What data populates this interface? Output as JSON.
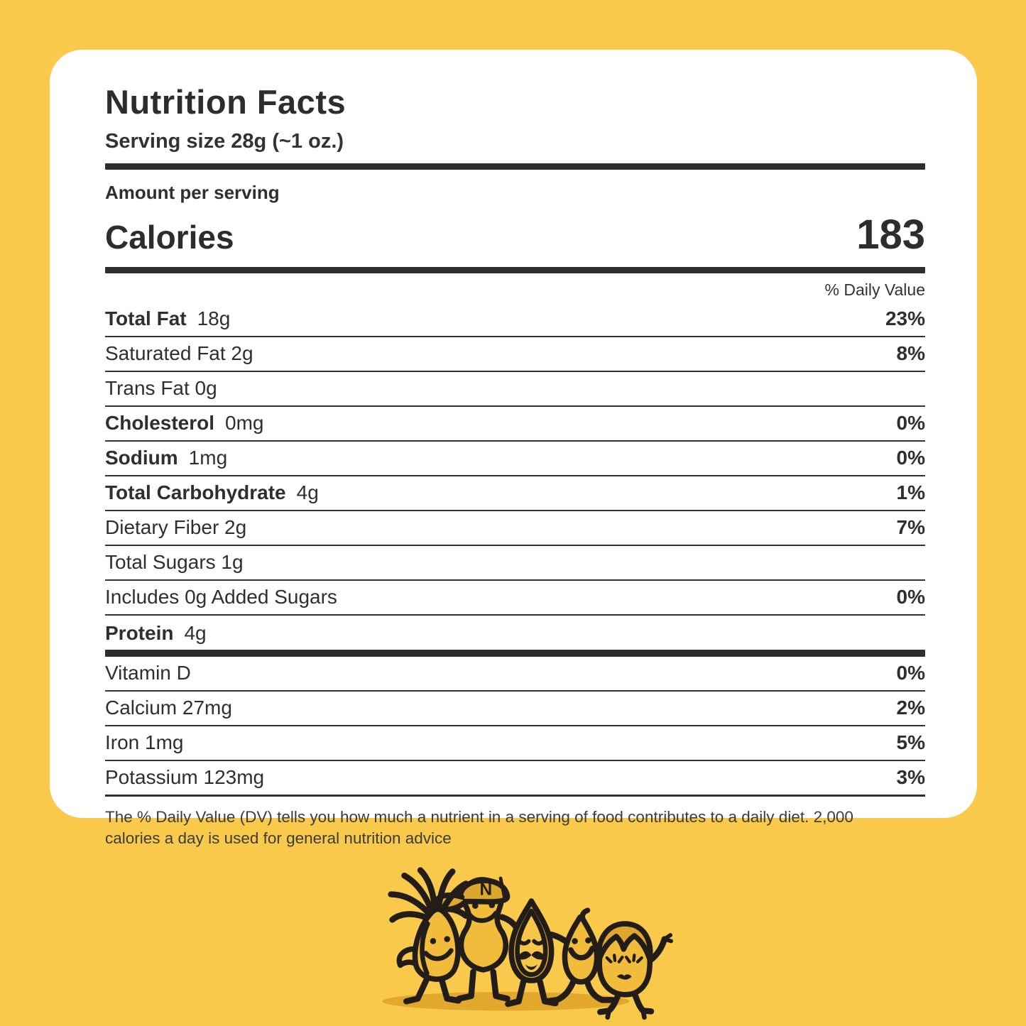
{
  "label": {
    "title": "Nutrition Facts",
    "serving_size": "Serving size 28g (~1 oz.)",
    "amount_per_serving": "Amount per serving",
    "calories_label": "Calories",
    "calories_value": "183",
    "daily_value_header": "% Daily Value",
    "rows": [
      {
        "bold": "Total Fat",
        "rest": "18g",
        "pct": "23%",
        "sep": "thin"
      },
      {
        "bold": "",
        "rest": "Saturated Fat 2g",
        "pct": "8%",
        "sep": "thin"
      },
      {
        "bold": "",
        "rest": "Trans Fat 0g",
        "pct": "",
        "sep": "thin"
      },
      {
        "bold": "Cholesterol",
        "rest": "0mg",
        "pct": "0%",
        "sep": "thin"
      },
      {
        "bold": "Sodium",
        "rest": "1mg",
        "pct": "0%",
        "sep": "thin"
      },
      {
        "bold": "Total Carbohydrate",
        "rest": "4g",
        "pct": "1%",
        "sep": "thin"
      },
      {
        "bold": "",
        "rest": "Dietary Fiber 2g",
        "pct": "7%",
        "sep": "thin"
      },
      {
        "bold": "",
        "rest": "Total Sugars 1g",
        "pct": "",
        "sep": "thin"
      },
      {
        "bold": "",
        "rest": "Includes 0g Added Sugars",
        "pct": "0%",
        "sep": "thin"
      },
      {
        "bold": "Protein",
        "rest": "4g",
        "pct": "",
        "sep": "thick"
      },
      {
        "bold": "",
        "rest": "Vitamin D",
        "pct": "0%",
        "sep": "thin"
      },
      {
        "bold": "",
        "rest": "Calcium 27mg",
        "pct": "2%",
        "sep": "thin"
      },
      {
        "bold": "",
        "rest": "Iron 1mg",
        "pct": "5%",
        "sep": "thin"
      },
      {
        "bold": "",
        "rest": "Potassium 123mg",
        "pct": "3%",
        "sep": "end"
      }
    ],
    "footnote": "The % Daily Value (DV) tells you how much a nutrient in a serving of food contributes to a daily diet. 2,000 calories a day is used for general nutrition advice"
  },
  "illustration": {
    "name": "nut-family-characters",
    "cap_letter": "N"
  },
  "colors": {
    "background": "#F8C94B",
    "card": "#FFFFFF",
    "text": "#2D2D2D",
    "divider": "#2E2E2E",
    "illustration_body": "#F1BB3C",
    "illustration_accent": "#DDA62E",
    "illustration_outline": "#231D1A",
    "illustration_shadow": "#E2A82E"
  }
}
